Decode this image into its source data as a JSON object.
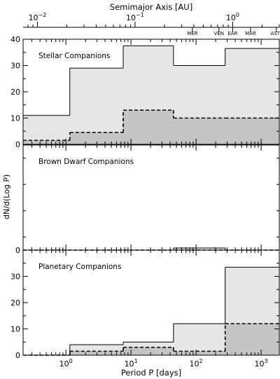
{
  "top_axis": {
    "label": "Semimajor Axis [AU]",
    "ticks": [
      {
        "label": "10",
        "sup": "−2",
        "value": 0.01
      },
      {
        "label": "10",
        "sup": "−1",
        "value": 0.1
      },
      {
        "label": "10",
        "sup": "0",
        "value": 1
      }
    ],
    "planets": [
      {
        "label": "MER",
        "au": 0.387
      },
      {
        "label": "VEN",
        "au": 0.723
      },
      {
        "label": "EAR",
        "au": 1.0
      },
      {
        "label": "MAR",
        "au": 1.524
      },
      {
        "label": "AST",
        "au": 2.8
      }
    ]
  },
  "chart_data": {
    "type": "area",
    "step": true,
    "x_scale": "log",
    "xlim": [
      0.22,
      1900
    ],
    "xlabel": "Period P [days]",
    "ylabel": "dN/d(Log P)",
    "x_ticks": [
      {
        "label": "10",
        "sup": "0",
        "value": 1
      },
      {
        "label": "10",
        "sup": "1",
        "value": 10
      },
      {
        "label": "10",
        "sup": "2",
        "value": 100
      },
      {
        "label": "10",
        "sup": "3",
        "value": 1000
      }
    ],
    "panels": [
      {
        "title": "Stellar Companions",
        "ylim": [
          0,
          40
        ],
        "y_ticks": [
          0,
          10,
          20,
          30,
          40
        ],
        "outer": {
          "edges": [
            0.22,
            1.15,
            7.6,
            45,
            280,
            1900
          ],
          "values": [
            11,
            29,
            37.5,
            30,
            36.5
          ]
        },
        "inner": {
          "edges": [
            0.22,
            1.15,
            7.6,
            45,
            280,
            1900
          ],
          "values": [
            1.5,
            4.5,
            13,
            10,
            10
          ]
        }
      },
      {
        "title": "Brown Dwarf Companions",
        "ylim": [
          0,
          40
        ],
        "y_ticks": [
          0
        ],
        "outer": {
          "edges": [
            0.22,
            45,
            280,
            1900
          ],
          "values": [
            0,
            0.8,
            0
          ]
        },
        "inner": {
          "edges": [
            0.22,
            1900
          ],
          "values": [
            0
          ]
        }
      },
      {
        "title": "Planetary Companions",
        "ylim": [
          0,
          40
        ],
        "y_ticks": [
          0,
          10,
          20,
          30
        ],
        "outer": {
          "edges": [
            0.22,
            1.15,
            7.6,
            45,
            280,
            1900
          ],
          "values": [
            0,
            4,
            5,
            12,
            33.5
          ]
        },
        "inner": {
          "edges": [
            0.22,
            1.15,
            7.6,
            45,
            280,
            1900
          ],
          "values": [
            0,
            1.5,
            3,
            1.5,
            12
          ]
        }
      }
    ],
    "colors": {
      "outer_fill": "#e6e6e6",
      "inner_fill": "#c4c4c4",
      "line": "#000000"
    }
  }
}
